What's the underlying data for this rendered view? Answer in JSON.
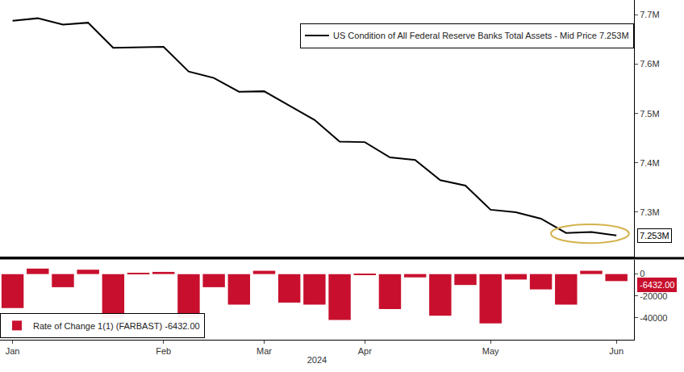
{
  "chart_data": [
    {
      "type": "line",
      "categories": [
        "Jan",
        null,
        null,
        null,
        null,
        null,
        "Feb",
        null,
        null,
        null,
        "Mar",
        null,
        null,
        null,
        "Apr",
        null,
        null,
        null,
        null,
        "May",
        null,
        null,
        null,
        null,
        "Jun"
      ],
      "series": [
        {
          "name": "US Condition of All Federal Reserve Banks Total Assets - Mid Price 7.253M",
          "color": "#000000",
          "values": [
            7.688,
            7.693,
            7.68,
            7.684,
            7.633,
            7.634,
            7.635,
            7.585,
            7.572,
            7.544,
            7.545,
            7.516,
            7.487,
            7.443,
            7.442,
            7.411,
            7.406,
            7.365,
            7.354,
            7.305,
            7.3,
            7.287,
            7.258,
            7.26,
            7.253
          ]
        }
      ],
      "ylim": [
        7.21,
        7.73
      ],
      "yticks": [
        {
          "value": 7.3,
          "label": "7.3M"
        },
        {
          "value": 7.4,
          "label": "7.4M"
        },
        {
          "value": 7.5,
          "label": "7.5M"
        },
        {
          "value": 7.6,
          "label": "7.6M"
        },
        {
          "value": 7.7,
          "label": "7.7M"
        }
      ],
      "grid": false,
      "legend": "upper right",
      "tick_labels": "y",
      "annotations": [
        {
          "text": "7.253M",
          "y": 7.253
        }
      ]
    },
    {
      "type": "bar",
      "categories": [
        "Jan",
        null,
        null,
        null,
        null,
        null,
        "Feb",
        null,
        null,
        null,
        "Mar",
        null,
        null,
        null,
        "Apr",
        null,
        null,
        null,
        null,
        "May",
        null,
        null,
        null,
        null,
        "Jun"
      ],
      "series": [
        {
          "name": "Rate of Change 1(1) (FARBAST) -6432.00",
          "color": "#c8102e",
          "values": [
            -31000,
            5000,
            -12000,
            4000,
            -40000,
            1000,
            2000,
            -40000,
            -12000,
            -28000,
            3000,
            -26000,
            -28000,
            -42000,
            -1000,
            -32000,
            -3000,
            -38000,
            -10000,
            -45000,
            -5000,
            -14000,
            -28000,
            3000,
            -6432
          ]
        }
      ],
      "ylim": [
        -60000,
        13000
      ],
      "yticks": [
        0,
        -20000,
        -40000
      ],
      "grid": false,
      "legend": "lower left",
      "x_label": "2024",
      "annotations": [
        {
          "text": "-6432.00",
          "y": -6432
        }
      ]
    }
  ]
}
